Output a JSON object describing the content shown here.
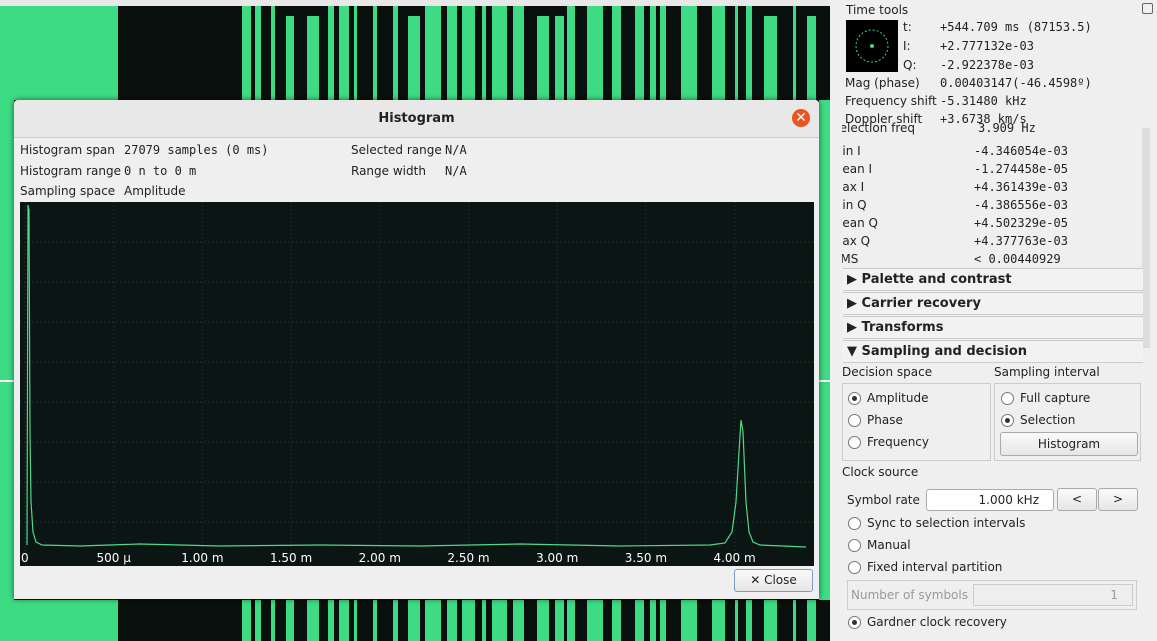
{
  "histogram_dialog": {
    "title": "Histogram",
    "info": [
      {
        "label": "Histogram span",
        "value": "27079 samples (0 ms)"
      },
      {
        "label": "Histogram range",
        "value": "0 n to 0 m"
      },
      {
        "label": "Sampling space",
        "value": "Amplitude"
      }
    ],
    "selection": [
      {
        "label": "Selected range",
        "value": "N/A"
      },
      {
        "label": "Range width",
        "value": "N/A"
      }
    ],
    "x_tick_labels": [
      "0",
      "500 µ",
      "1.00 m",
      "1.50 m",
      "2.00 m",
      "2.50 m",
      "3.00 m",
      "3.50 m",
      "4.00 m"
    ],
    "close_button": "Close"
  },
  "time_tools": {
    "title": "Time tools",
    "rows": [
      {
        "label": "t:",
        "value": "+544.709 ms (87153.5)"
      },
      {
        "label": "I:",
        "value": "+2.777132e-03"
      },
      {
        "label": "Q:",
        "value": "-2.922378e-03"
      }
    ],
    "rows2": [
      {
        "label": "Mag (phase)",
        "value": "0.00403147(-46.4598º)"
      },
      {
        "label": "Frequency shift",
        "value": "-5.31480 kHz"
      },
      {
        "label": "Doppler shift",
        "value": "+3.6738 km/s"
      }
    ]
  },
  "stats": [
    {
      "label": "Selection freq",
      "value": "3.909 Hz"
    },
    {
      "label": "Min I",
      "value": "-4.346054e-03"
    },
    {
      "label": "Mean I",
      "value": "-1.274458e-05"
    },
    {
      "label": "Max I",
      "value": "+4.361439e-03"
    },
    {
      "label": "Min Q",
      "value": "-4.386556e-03"
    },
    {
      "label": "Mean Q",
      "value": "+4.502329e-05"
    },
    {
      "label": "Max Q",
      "value": "+4.377763e-03"
    },
    {
      "label": "RMS",
      "value": "< 0.00440929"
    }
  ],
  "sections": [
    {
      "title": "Palette and contrast",
      "expanded": false
    },
    {
      "title": "Carrier recovery",
      "expanded": false
    },
    {
      "title": "Transforms",
      "expanded": false
    },
    {
      "title": "Sampling and decision",
      "expanded": true
    }
  ],
  "sampling": {
    "decision_space": {
      "title": "Decision space",
      "options": [
        {
          "label": "Amplitude",
          "checked": true
        },
        {
          "label": "Phase",
          "checked": false
        },
        {
          "label": "Frequency",
          "checked": false
        }
      ]
    },
    "sampling_interval": {
      "title": "Sampling interval",
      "options": [
        {
          "label": "Full capture",
          "checked": false
        },
        {
          "label": "Selection",
          "checked": true
        }
      ],
      "button": "Histogram"
    },
    "clock_source": "Clock source",
    "symbol_rate": {
      "label": "Symbol rate",
      "value": "1.000 kHz",
      "prev": "<",
      "next": ">"
    },
    "clock_options": [
      {
        "label": "Sync to selection intervals",
        "checked": false
      },
      {
        "label": "Manual",
        "checked": false
      },
      {
        "label": "Fixed interval partition",
        "checked": false
      }
    ],
    "number_of_symbols": {
      "label": "Number of symbols",
      "value": "1"
    },
    "gardner": {
      "label": "Gardner clock recovery",
      "checked": true
    }
  }
}
